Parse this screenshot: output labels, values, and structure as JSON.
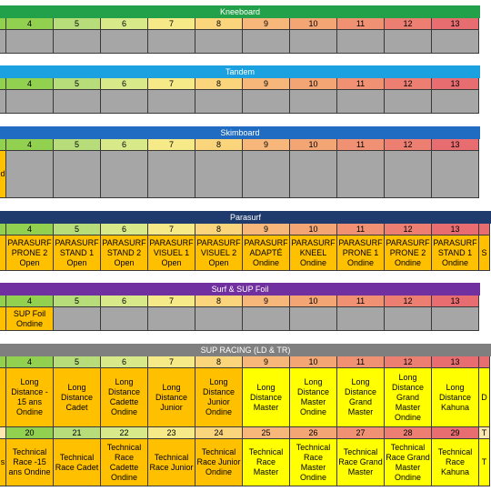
{
  "sections": {
    "kneeboard": "Kneeboard",
    "tandem": "Tandem",
    "skimboard": "Skimboard",
    "parasurf": "Parasurf",
    "surf_sup_foil": "Surf & SUP Foil",
    "sup_racing": "SUP RACING (LD & TR)"
  },
  "nums": [
    "4",
    "5",
    "6",
    "7",
    "8",
    "9",
    "10",
    "11",
    "12",
    "13"
  ],
  "skim_left": "d",
  "parasurf_row": [
    [
      "PARASURF",
      "PRONE 2",
      "Open"
    ],
    [
      "PARASURF",
      "STAND 1",
      "Open"
    ],
    [
      "PARASURF",
      "STAND 2",
      "Open"
    ],
    [
      "PARASURF",
      "VISUEL 1",
      "Open"
    ],
    [
      "PARASURF",
      "VISUEL 2",
      "Open"
    ],
    [
      "PARASURF",
      "ADAPTÉ",
      "Ondine"
    ],
    [
      "PARASURF",
      "KNEEL",
      "Ondine"
    ],
    [
      "PARASURF",
      "PRONE 1",
      "Ondine"
    ],
    [
      "PARASURF",
      "PRONE 2",
      "Ondine"
    ],
    [
      "PARASURF",
      "STAND 1",
      "Ondine"
    ]
  ],
  "parasurf_right": "S",
  "foil_cell": [
    "SUP Foil",
    "Ondine"
  ],
  "sup_nums_top": [
    "4",
    "5",
    "6",
    "7",
    "8",
    "9",
    "10",
    "11",
    "12",
    "13"
  ],
  "sup_row1": [
    [
      "Long",
      "Distance -",
      "15 ans",
      "Ondine"
    ],
    [
      "Long",
      "Distance",
      "Cadet"
    ],
    [
      "Long",
      "Distance",
      "Cadette",
      "Ondine"
    ],
    [
      "Long",
      "Distance",
      "Junior"
    ],
    [
      "Long",
      "Distance",
      "Junior",
      "Ondine"
    ],
    [
      "Long",
      "Distance",
      "Master"
    ],
    [
      "Long",
      "Distance",
      "Master",
      "Ondine"
    ],
    [
      "Long",
      "Distance",
      "Grand",
      "Master"
    ],
    [
      "Long",
      "Distance",
      "Grand",
      "Master",
      "Ondine"
    ],
    [
      "Long",
      "Distance",
      "Kahuna"
    ]
  ],
  "sup_right1": "D",
  "sup_nums_bottom": [
    "20",
    "21",
    "22",
    "23",
    "24",
    "25",
    "26",
    "27",
    "28",
    "29"
  ],
  "sup_row2": [
    [
      "Technical",
      "Race -15",
      "ans Ondine"
    ],
    [
      "Technical",
      "Race Cadet"
    ],
    [
      "Technical",
      "Race",
      "Cadette",
      "Ondine"
    ],
    [
      "Technical",
      "Race Junior"
    ],
    [
      "Technical",
      "Race Junior",
      "Ondine"
    ],
    [
      "Technical",
      "Race",
      "Master"
    ],
    [
      "Technical",
      "Race",
      "Master",
      "Ondine"
    ],
    [
      "Technical",
      "Race Grand",
      "Master"
    ],
    [
      "Technical",
      "Race Grand",
      "Master",
      "Ondine"
    ],
    [
      "Technical",
      "Race",
      "Kahuna"
    ]
  ],
  "sup_left2": "s",
  "sup_right_num2": "T",
  "sup_right2": "T"
}
